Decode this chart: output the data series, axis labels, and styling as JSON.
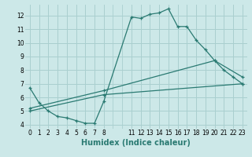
{
  "xlabel": "Humidex (Indice chaleur)",
  "bg_color": "#cce8e8",
  "grid_color": "#aacfcf",
  "line_color": "#2a7a72",
  "xlim": [
    -0.5,
    23.5
  ],
  "ylim": [
    3.7,
    12.8
  ],
  "yticks": [
    4,
    5,
    6,
    7,
    8,
    9,
    10,
    11,
    12
  ],
  "xtick_positions": [
    0,
    1,
    2,
    3,
    4,
    5,
    6,
    7,
    8,
    11,
    12,
    13,
    14,
    15,
    16,
    17,
    18,
    19,
    20,
    21,
    22,
    23
  ],
  "xtick_labels": [
    "0",
    "1",
    "2",
    "3",
    "4",
    "5",
    "6",
    "7",
    "8",
    "11",
    "12",
    "13",
    "14",
    "15",
    "16",
    "17",
    "18",
    "19",
    "20",
    "21",
    "22",
    "23"
  ],
  "line1_x": [
    0,
    1,
    2,
    3,
    4,
    5,
    6,
    7,
    8,
    11,
    12,
    13,
    14,
    15,
    16,
    17,
    18,
    19,
    20,
    21,
    22,
    23
  ],
  "line1_y": [
    6.7,
    5.6,
    5.0,
    4.6,
    4.5,
    4.3,
    4.1,
    4.1,
    5.7,
    11.9,
    11.8,
    12.1,
    12.2,
    12.5,
    11.2,
    11.2,
    10.2,
    9.5,
    8.7,
    8.0,
    7.5,
    7.0
  ],
  "line2_x": [
    0,
    8,
    23
  ],
  "line2_y": [
    5.0,
    6.2,
    7.0
  ],
  "line3_x": [
    0,
    8,
    20,
    23
  ],
  "line3_y": [
    5.2,
    6.5,
    8.7,
    7.5
  ],
  "tick_fontsize": 5.5,
  "xlabel_fontsize": 7
}
